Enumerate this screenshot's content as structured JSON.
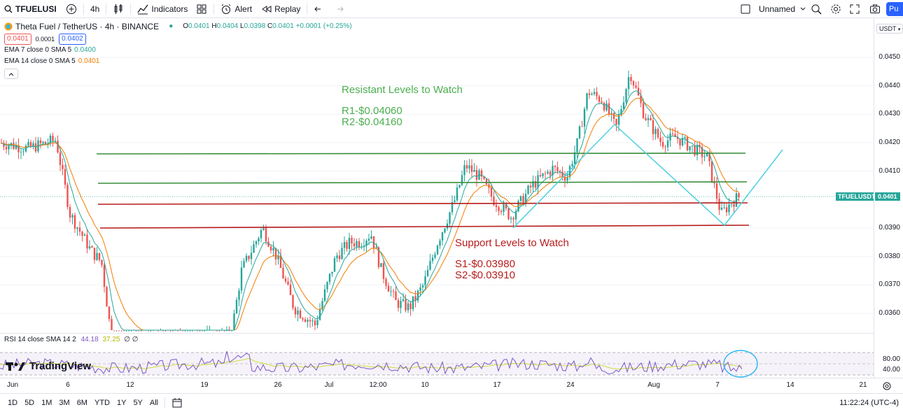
{
  "toolbar": {
    "symbol": "TFUELUSI",
    "interval": "4h",
    "indicators_label": "Indicators",
    "alert_label": "Alert",
    "replay_label": "Replay",
    "layout_name": "Unnamed",
    "publish_label": "Pu"
  },
  "legend": {
    "title": "Theta Fuel / TetherUS · 4h · BINANCE",
    "ohlc": {
      "o_label": "O",
      "o": "0.0401",
      "h_label": "H",
      "h": "0.0404",
      "l_label": "L",
      "l": "0.0398",
      "c_label": "C",
      "c": "0.0401",
      "change": "+0.0001 (+0.25%)"
    },
    "sell_price": "0.0401",
    "spread": "0.0001",
    "buy_price": "0.0402",
    "ema7_label": "EMA 7 close 0 SMA 5",
    "ema7_value": "0.0400",
    "ema14_label": "EMA 14 close 0 SMA 5",
    "ema14_value": "0.0401"
  },
  "annotations": {
    "resist_title": "Resistant Levels to Watch",
    "r1": "R1-$0.04060",
    "r2": "R2-$0.04160",
    "support_title": "Support Levels to Watch",
    "s1": "S1-$0.03980",
    "s2": "S2-$0.03910"
  },
  "colors": {
    "up": "#26a69a",
    "down": "#ef5350",
    "ema7": "#26a69a",
    "ema14": "#f57c00",
    "resistance": "#388e3c",
    "support": "#b71c1c",
    "pattern": "#4dd0e1",
    "rsi": "#7e57c2",
    "rsi_sma": "#cddc39",
    "accent": "#2962ff"
  },
  "price_axis": {
    "currency": "USDT",
    "ticks": [
      "0.0450",
      "0.0440",
      "0.0430",
      "0.0420",
      "0.0410",
      "0.0390",
      "0.0380",
      "0.0370",
      "0.0360"
    ],
    "current_symbol": "TFUELUSDT",
    "current_price": "0.0401"
  },
  "rsi": {
    "label": "RSI 14 close SMA 14 2",
    "rsi_value": "44.18",
    "sma_value": "37.25",
    "extra": "∅ ∅",
    "ticks": [
      "80.00",
      "40.00"
    ]
  },
  "time_axis": {
    "ticks": [
      "Jun",
      "6",
      "12",
      "19",
      "26",
      "Jul",
      "12:00",
      "10",
      "17",
      "24",
      "Aug",
      "7",
      "14",
      "21"
    ]
  },
  "bottom": {
    "timeframes": [
      "1D",
      "5D",
      "1M",
      "3M",
      "6M",
      "YTD",
      "1Y",
      "5Y",
      "All"
    ],
    "clock": "11:22:24 (UTC-4)"
  },
  "watermark": "TradingView"
}
